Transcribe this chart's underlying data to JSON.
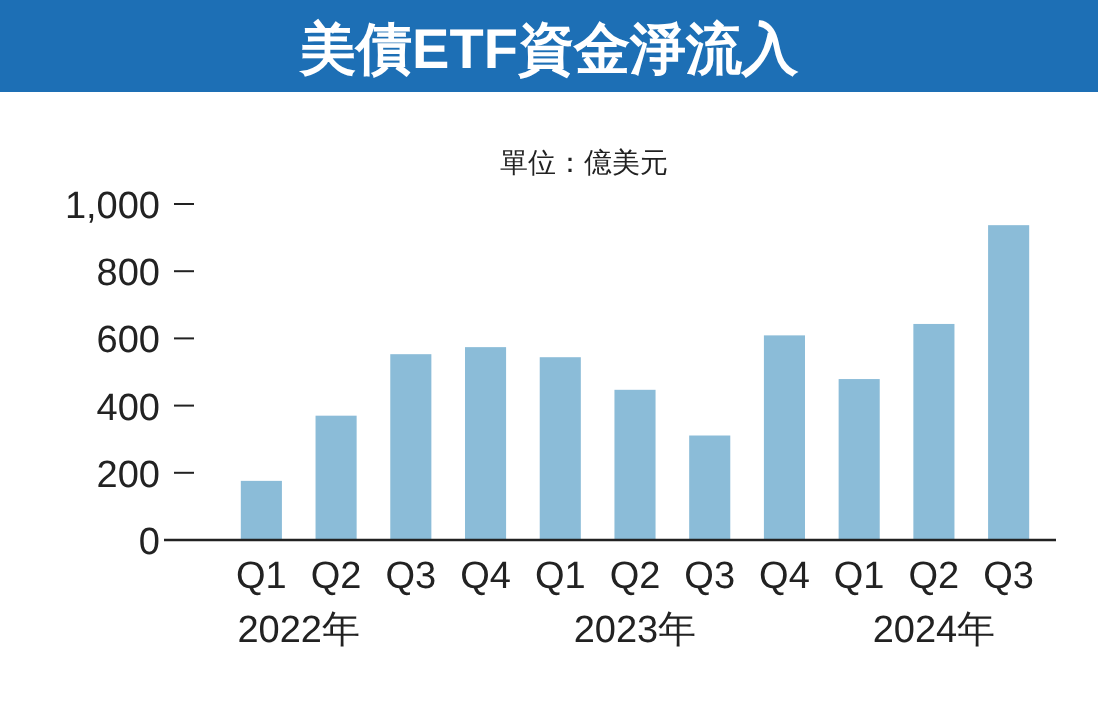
{
  "chart_data": {
    "type": "bar",
    "title": "美債ETF資金淨流入",
    "subtitle": "單位：億美元",
    "categories": [
      "Q1",
      "Q2",
      "Q3",
      "Q4",
      "Q1",
      "Q2",
      "Q3",
      "Q4",
      "Q1",
      "Q2",
      "Q3"
    ],
    "values": [
      176,
      370,
      553,
      574,
      544,
      447,
      311,
      609,
      479,
      643,
      937
    ],
    "color": "#8bbcd8",
    "ylim": [
      0,
      1000
    ],
    "yticks": [
      0,
      200,
      400,
      600,
      800,
      {
        "value": 1000,
        "label": "1,000"
      }
    ],
    "grid": false,
    "annotations": [
      "2022年",
      "2023年",
      "2024年"
    ]
  }
}
